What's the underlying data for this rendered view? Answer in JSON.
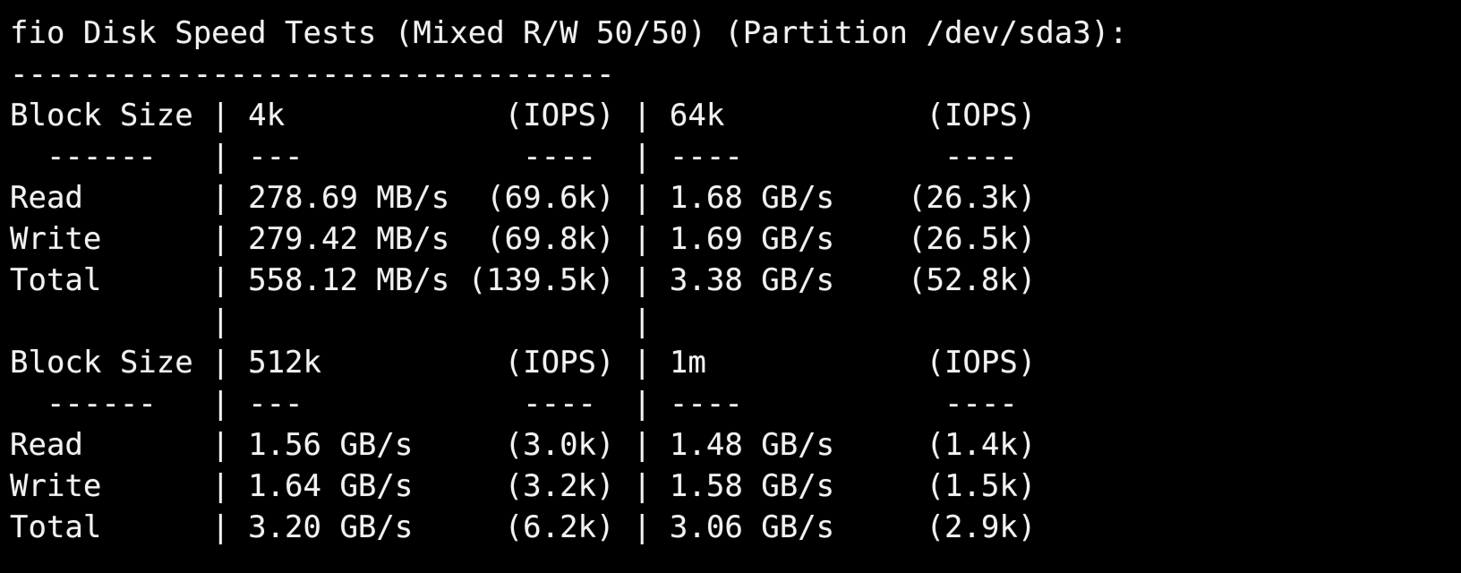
{
  "terminal": {
    "colors": {
      "background": "#000000",
      "text": "#f2f2f2"
    },
    "test": {
      "tool": "fio",
      "title": "fio Disk Speed Tests (Mixed R/W 50/50) (Partition /dev/sda3):",
      "mode": "Mixed R/W 50/50",
      "partition": "/dev/sda3"
    },
    "separator": "---------------------------------",
    "tables": [
      {
        "row_label_header": "Block Size",
        "columns": [
          {
            "block_size": "4k",
            "unit_header": "(IOPS)"
          },
          {
            "block_size": "64k",
            "unit_header": "(IOPS)"
          }
        ],
        "rows": [
          {
            "label": "Read",
            "values": [
              {
                "speed": "278.69 MB/s",
                "iops": "69.6k"
              },
              {
                "speed": "1.68 GB/s",
                "iops": "26.3k"
              }
            ]
          },
          {
            "label": "Write",
            "values": [
              {
                "speed": "279.42 MB/s",
                "iops": "69.8k"
              },
              {
                "speed": "1.69 GB/s",
                "iops": "26.5k"
              }
            ]
          },
          {
            "label": "Total",
            "values": [
              {
                "speed": "558.12 MB/s",
                "iops": "139.5k"
              },
              {
                "speed": "3.38 GB/s",
                "iops": "52.8k"
              }
            ]
          }
        ]
      },
      {
        "row_label_header": "Block Size",
        "columns": [
          {
            "block_size": "512k",
            "unit_header": "(IOPS)"
          },
          {
            "block_size": "1m",
            "unit_header": "(IOPS)"
          }
        ],
        "rows": [
          {
            "label": "Read",
            "values": [
              {
                "speed": "1.56 GB/s",
                "iops": "3.0k"
              },
              {
                "speed": "1.48 GB/s",
                "iops": "1.4k"
              }
            ]
          },
          {
            "label": "Write",
            "values": [
              {
                "speed": "1.64 GB/s",
                "iops": "3.2k"
              },
              {
                "speed": "1.58 GB/s",
                "iops": "1.5k"
              }
            ]
          },
          {
            "label": "Total",
            "values": [
              {
                "speed": "3.20 GB/s",
                "iops": "6.2k"
              },
              {
                "speed": "3.06 GB/s",
                "iops": "2.9k"
              }
            ]
          }
        ]
      }
    ],
    "lines": [
      "fio Disk Speed Tests (Mixed R/W 50/50) (Partition /dev/sda3):",
      "---------------------------------",
      "Block Size | 4k            (IOPS) | 64k           (IOPS)",
      "  ------   | ---            ----  | ----           ---- ",
      "Read       | 278.69 MB/s  (69.6k) | 1.68 GB/s    (26.3k)",
      "Write      | 279.42 MB/s  (69.8k) | 1.69 GB/s    (26.5k)",
      "Total      | 558.12 MB/s (139.5k) | 3.38 GB/s    (52.8k)",
      "           |                      |",
      "Block Size | 512k          (IOPS) | 1m            (IOPS)",
      "  ------   | ---            ----  | ----           ---- ",
      "Read       | 1.56 GB/s     (3.0k) | 1.48 GB/s     (1.4k)",
      "Write      | 1.64 GB/s     (3.2k) | 1.58 GB/s     (1.5k)",
      "Total      | 3.20 GB/s     (6.2k) | 3.06 GB/s     (2.9k)"
    ]
  }
}
